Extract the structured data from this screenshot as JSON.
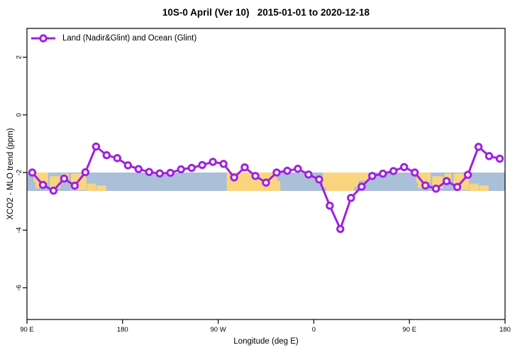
{
  "chart_data": {
    "type": "line",
    "title": "10S-0 April (Ver 10)   2015-01-01 to 2020-12-18",
    "xlabel": "Longitude (deg E)",
    "ylabel": "XCO2 - MLO trend (ppm)",
    "xlim": [
      90,
      540
    ],
    "ylim": [
      -7.1,
      3.0
    ],
    "grid": false,
    "legend_position": "top-left-inside",
    "colors": {
      "line": "#A020E0",
      "marker_fill": "#FFFFFF",
      "ocean": "#AABFD8",
      "land": "#FBD57E",
      "axis": "#000000",
      "text": "#000000",
      "background": "#FFFFFF"
    },
    "x_ticks": [
      {
        "value": 90,
        "label": "90 E"
      },
      {
        "value": 180,
        "label": "180"
      },
      {
        "value": 270,
        "label": "90 W"
      },
      {
        "value": 360,
        "label": "0"
      },
      {
        "value": 450,
        "label": "90 E"
      },
      {
        "value": 540,
        "label": "180"
      }
    ],
    "y_ticks": [
      {
        "value": 2,
        "label": "2"
      },
      {
        "value": 0,
        "label": "0"
      },
      {
        "value": -2,
        "label": "-2"
      },
      {
        "value": -4,
        "label": "-4"
      },
      {
        "value": -6,
        "label": "-6"
      }
    ],
    "series": [
      {
        "name": "Land (Nadir&Glint) and Ocean (Glint)",
        "marker": "open-circle",
        "x": [
          95,
          105,
          115,
          125,
          135,
          145,
          155,
          165,
          175,
          185,
          195,
          205,
          215,
          225,
          235,
          245,
          255,
          265,
          275,
          285,
          295,
          305,
          315,
          325,
          335,
          345,
          355,
          365,
          375,
          385,
          395,
          405,
          415,
          425,
          435,
          445,
          455,
          465,
          475,
          485,
          495,
          505,
          515,
          525,
          535
        ],
        "y": [
          -2.0,
          -2.43,
          -2.63,
          -2.21,
          -2.46,
          -1.99,
          -1.1,
          -1.4,
          -1.5,
          -1.75,
          -1.88,
          -1.98,
          -2.03,
          -2.01,
          -1.89,
          -1.84,
          -1.74,
          -1.63,
          -1.7,
          -2.17,
          -1.82,
          -2.12,
          -2.35,
          -2.0,
          -1.94,
          -1.87,
          -2.07,
          -2.24,
          -3.15,
          -3.96,
          -2.88,
          -2.49,
          -2.12,
          -2.04,
          -1.95,
          -1.81,
          -2.0,
          -2.45,
          -2.56,
          -2.3,
          -2.5,
          -2.08,
          -1.11,
          -1.43,
          -1.52
        ]
      }
    ],
    "map_band": {
      "description": "ocean/land map strip for the 10S-0 latitude band",
      "y_top": -2.0,
      "y_bottom": -2.64,
      "land_patches": [
        [
          96.5,
          110,
          0,
          0.55
        ],
        [
          98,
          103,
          0.55,
          0.85
        ],
        [
          111.5,
          121.5,
          0.2,
          0.85
        ],
        [
          123,
          129.5,
          0.05,
          0.5
        ],
        [
          131.5,
          146,
          0.05,
          0.95
        ],
        [
          146.5,
          155,
          0.6,
          1
        ],
        [
          155.5,
          164.5,
          0.7,
          1
        ],
        [
          278,
          325.5,
          0,
          1
        ],
        [
          325.5,
          328.5,
          0.45,
          1
        ],
        [
          368.5,
          402,
          0,
          0.78
        ],
        [
          371.5,
          398,
          0.78,
          1
        ],
        [
          402,
          411,
          0,
          0.45
        ],
        [
          456.5,
          470,
          0,
          0.55
        ],
        [
          458,
          463,
          0.55,
          0.85
        ],
        [
          471.5,
          481.5,
          0.2,
          0.85
        ],
        [
          483,
          489.5,
          0.05,
          0.5
        ],
        [
          491.5,
          506,
          0.05,
          0.95
        ],
        [
          506.5,
          515,
          0.6,
          1
        ],
        [
          515.5,
          524.5,
          0.7,
          1
        ]
      ]
    }
  }
}
